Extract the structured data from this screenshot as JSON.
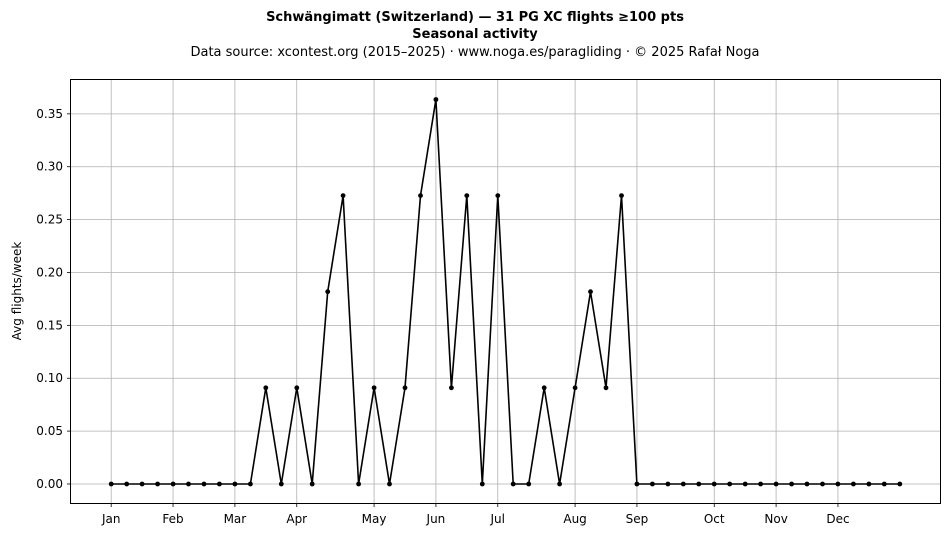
{
  "chart_data": {
    "type": "line",
    "title": "Schwängimatt (Switzerland)  —  31 PG XC flights ≥100 pts",
    "subtitle": "Seasonal activity",
    "source_line": "Data source: xcontest.org (2015–2025)  ·  www.noga.es/paragliding  ·  © 2025 Rafał Noga",
    "xlabel": "",
    "ylabel": "Avg flights/week",
    "x_ticks": [
      {
        "label": "Jan",
        "week": 1
      },
      {
        "label": "Feb",
        "week": 5
      },
      {
        "label": "Mar",
        "week": 9
      },
      {
        "label": "Apr",
        "week": 13
      },
      {
        "label": "May",
        "week": 18
      },
      {
        "label": "Jun",
        "week": 22
      },
      {
        "label": "Jul",
        "week": 26
      },
      {
        "label": "Aug",
        "week": 31
      },
      {
        "label": "Sep",
        "week": 35
      },
      {
        "label": "Oct",
        "week": 40
      },
      {
        "label": "Nov",
        "week": 44
      },
      {
        "label": "Dec",
        "week": 48
      }
    ],
    "y_ticks": [
      "0.00",
      "0.05",
      "0.10",
      "0.15",
      "0.20",
      "0.25",
      "0.30",
      "0.35"
    ],
    "xlim": [
      -1.6,
      54.6
    ],
    "ylim": [
      -0.018,
      0.382
    ],
    "grid": true,
    "color": "#000000",
    "series": [
      {
        "weeks": [
          1,
          2,
          3,
          4,
          5,
          6,
          7,
          8,
          9,
          10,
          11,
          12,
          13,
          14,
          15,
          16,
          17,
          18,
          19,
          20,
          21,
          22,
          23,
          24,
          25,
          26,
          27,
          28,
          29,
          30,
          31,
          32,
          33,
          34,
          35,
          36,
          37,
          38,
          39,
          40,
          41,
          42,
          43,
          44,
          45,
          46,
          47,
          48,
          49,
          50,
          51,
          52
        ],
        "values": [
          0,
          0,
          0,
          0,
          0,
          0,
          0,
          0,
          0,
          0,
          0.0909,
          0,
          0.0909,
          0,
          0.1818,
          0.2727,
          0,
          0.0909,
          0,
          0.0909,
          0.2727,
          0.3636,
          0.0909,
          0.2727,
          0,
          0.2727,
          0,
          0,
          0.0909,
          0,
          0.0909,
          0.1818,
          0.0909,
          0.2727,
          0,
          0,
          0,
          0,
          0,
          0,
          0,
          0,
          0,
          0,
          0,
          0,
          0,
          0,
          0,
          0,
          0,
          0
        ]
      }
    ]
  }
}
